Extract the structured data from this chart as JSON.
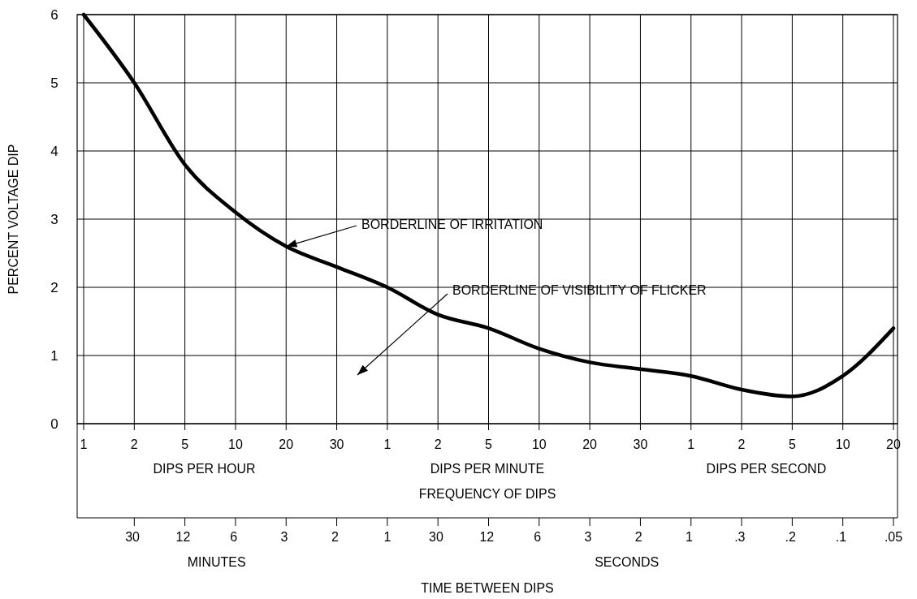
{
  "chart_data": {
    "type": "line",
    "ylabel": "PERCENT VOLTAGE DIP",
    "xlabel": "FREQUENCY OF DIPS",
    "x2label": "TIME BETWEEN DIPS",
    "grid": true,
    "marker": "none",
    "line_style": "solid",
    "categories": [
      "1",
      "2",
      "5",
      "10",
      "20",
      "30",
      "1",
      "2",
      "5",
      "10",
      "20",
      "30",
      "1",
      "2",
      "5",
      "10",
      "20"
    ],
    "ylim": [
      0,
      6
    ],
    "yticks": [
      0,
      1,
      2,
      3,
      4,
      5,
      6
    ],
    "series": [
      {
        "color": "#000000",
        "values": [
          6.0,
          5.0,
          3.8,
          3.1,
          2.6,
          2.3,
          2.0,
          1.6,
          1.4,
          1.1,
          0.9,
          0.8,
          0.7,
          0.5,
          0.4,
          0.7,
          1.4
        ]
      }
    ],
    "annotations": [
      {
        "text": "BORDERLINE OF IRRITATION",
        "x": "20",
        "y": 2.6
      },
      "BORDERLINE OF VISIBILITY OF FLICKER",
      "DIPS PER HOUR",
      "DIPS PER MINUTE",
      "DIPS PER SECOND",
      "MINUTES",
      "SECONDS",
      "30 12 6 3 2 1",
      "30 12 6 3 2 1 .3 .2 .1 .05"
    ]
  }
}
